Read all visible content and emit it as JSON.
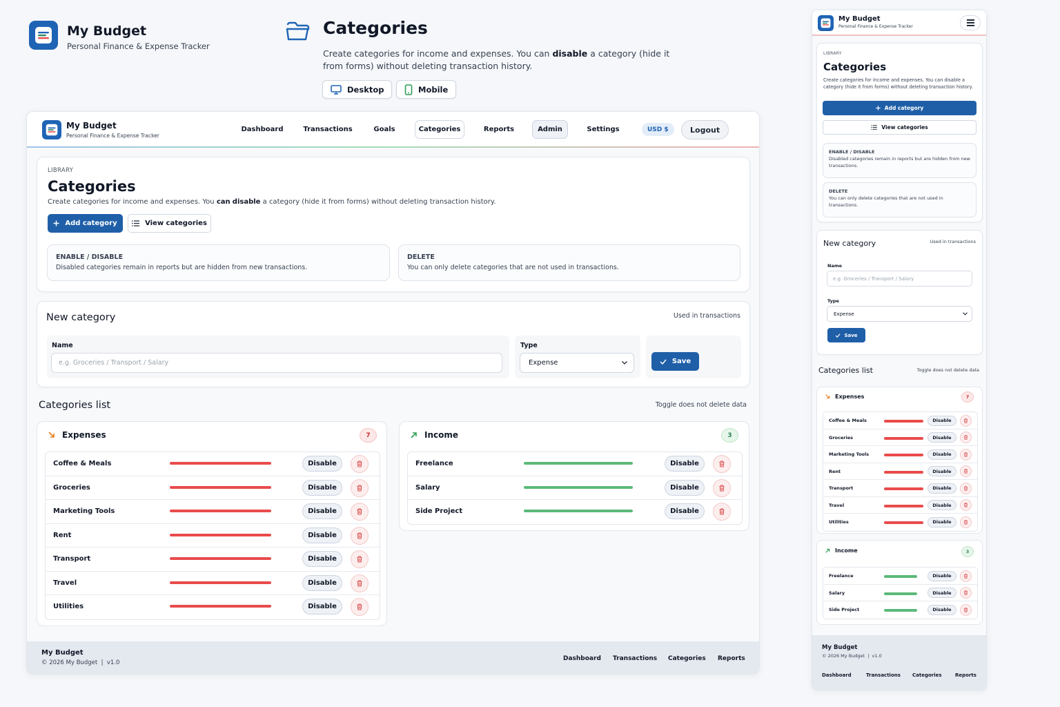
{
  "hero": {
    "brand_title": "My Budget",
    "brand_subtitle": "Personal Finance & Expense Tracker",
    "page_title": "Categories",
    "desc_part1": "Create categories for income and expenses. You can ",
    "desc_bold": "disable",
    "desc_part2": " a category (hide it from forms) without deleting transaction history.",
    "desktop_button": "Desktop",
    "mobile_button": "Mobile"
  },
  "desktop": {
    "brand_title": "My Budget",
    "brand_subtitle": "Personal Finance & Expense Tracker",
    "nav": [
      "Dashboard",
      "Transactions",
      "Goals",
      "Categories",
      "Reports",
      "Admin",
      "Settings"
    ],
    "active_nav": "Categories",
    "currency": "USD $",
    "logout": "Logout",
    "library": {
      "eyebrow": "LIBRARY",
      "title": "Categories",
      "desc_part1": "Create categories for income and expenses. You ",
      "desc_bold_can": "can",
      "desc_space": " ",
      "desc_bold_disable": "disable",
      "desc_part2": " a category (hide it from forms) without deleting transaction history.",
      "add_button": "Add category",
      "view_button": "View categories",
      "info": [
        {
          "label": "ENABLE / DISABLE",
          "text": "Disabled categories remain in reports but are hidden from new transactions."
        },
        {
          "label": "DELETE",
          "text": "You can only delete categories that are not used in transactions."
        }
      ]
    },
    "new_category": {
      "title": "New category",
      "note": "Used in transactions",
      "name_label": "Name",
      "name_placeholder": "e.g. Groceries / Transport / Salary",
      "type_label": "Type",
      "type_value": "Expense",
      "save_button": "Save"
    },
    "list": {
      "title": "Categories list",
      "note": "Toggle does not delete data",
      "disable_label": "Disable",
      "expenses": {
        "title": "Expenses",
        "count": "7",
        "items": [
          "Coffee & Meals",
          "Groceries",
          "Marketing Tools",
          "Rent",
          "Transport",
          "Travel",
          "Utilities"
        ]
      },
      "income": {
        "title": "Income",
        "count": "3",
        "items": [
          "Freelance",
          "Salary",
          "Side Project"
        ]
      }
    },
    "footer": {
      "brand": "My Budget",
      "copyright": "© 2026 My Budget  |  v1.0",
      "links": [
        "Dashboard",
        "Transactions",
        "Categories",
        "Reports"
      ]
    }
  },
  "mobile": {
    "brand_title": "My Budget",
    "brand_subtitle": "Personal Finance & Expense Tracker",
    "library": {
      "eyebrow": "LIBRARY",
      "title": "Categories",
      "desc": "Create categories for income and expenses. You can disable a category (hide it from forms) without deleting transaction history.",
      "add_button": "Add category",
      "view_button": "View categories",
      "info": [
        {
          "label": "ENABLE / DISABLE",
          "text": "Disabled categories remain in reports but are hidden from new transactions."
        },
        {
          "label": "DELETE",
          "text": "You can only delete categories that are not used in transactions."
        }
      ]
    },
    "new_category": {
      "title": "New category",
      "note": "Used in transactions",
      "name_label": "Name",
      "name_placeholder": "e.g. Groceries / Transport / Salary",
      "type_label": "Type",
      "type_value": "Expense",
      "save_button": "Save"
    },
    "list": {
      "title": "Categories list",
      "note": "Toggle does not delete data",
      "disable_label": "Disable",
      "expenses": {
        "title": "Expenses",
        "count": "7",
        "items": [
          "Coffee & Meals",
          "Groceries",
          "Marketing Tools",
          "Rent",
          "Transport",
          "Travel",
          "Utilities"
        ]
      },
      "income": {
        "title": "Income",
        "count": "3",
        "items": [
          "Freelance",
          "Salary",
          "Side Project"
        ]
      }
    },
    "footer": {
      "brand": "My Budget",
      "copyright": "© 2026 My Budget  |  v1.0",
      "links": [
        "Dashboard",
        "Transactions",
        "Categories",
        "Reports"
      ]
    }
  },
  "colors": {
    "primary": "#1f5fa8",
    "expense": "#e94b4b",
    "income": "#5cb97a",
    "admin_bg": "#eef1f6",
    "currency_bg": "#e3edf9"
  },
  "icons": [
    "app-logo-icon",
    "folder-icon",
    "monitor-icon",
    "phone-icon",
    "plus-icon",
    "list-icon",
    "check-icon",
    "chevron-down-icon",
    "arrow-down-right-icon",
    "arrow-up-right-icon",
    "trash-icon",
    "menu-icon"
  ]
}
